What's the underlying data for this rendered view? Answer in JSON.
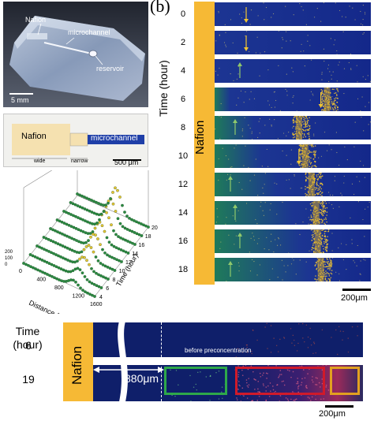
{
  "panel_a": {
    "photo_labels": {
      "nafion": "Nafion",
      "microchannel": "microchannel",
      "reservoir": "reservoir",
      "scale": "5 mm"
    },
    "schematic": {
      "nafion": "Nafion",
      "microchannel": "microchannel",
      "wide": "wide",
      "narrow": "narrow",
      "scale": "500 μm"
    },
    "plot3d": {
      "x_label": "Distance (μm)",
      "x_ticks": [
        "0",
        "400",
        "800",
        "1200",
        "1600"
      ],
      "y_label": "Time (hour)",
      "y_ticks": [
        "4",
        "6",
        "8",
        "10",
        "12",
        "14",
        "16",
        "18",
        "20"
      ],
      "z_ticks": [
        "0",
        "100",
        "200"
      ]
    }
  },
  "panel_b": {
    "label": "(b)",
    "axis_label": "Time (hour)",
    "nafion": "Nafion",
    "times": [
      "0",
      "2",
      "4",
      "6",
      "8",
      "10",
      "12",
      "14",
      "16",
      "18"
    ],
    "scale": "200μm"
  },
  "panel_c": {
    "time_label": "Time\n(hour)",
    "times": [
      "6",
      "19"
    ],
    "nafion": "Nafion",
    "annotation": "before preconcentration",
    "distance": "880μm",
    "scale": "200μm"
  },
  "colors": {
    "nafion": "#f6b935",
    "channel": "#14288a",
    "green_box": "#2ea84a",
    "red_box": "#d01a2a",
    "orange_box": "#e2a020"
  }
}
